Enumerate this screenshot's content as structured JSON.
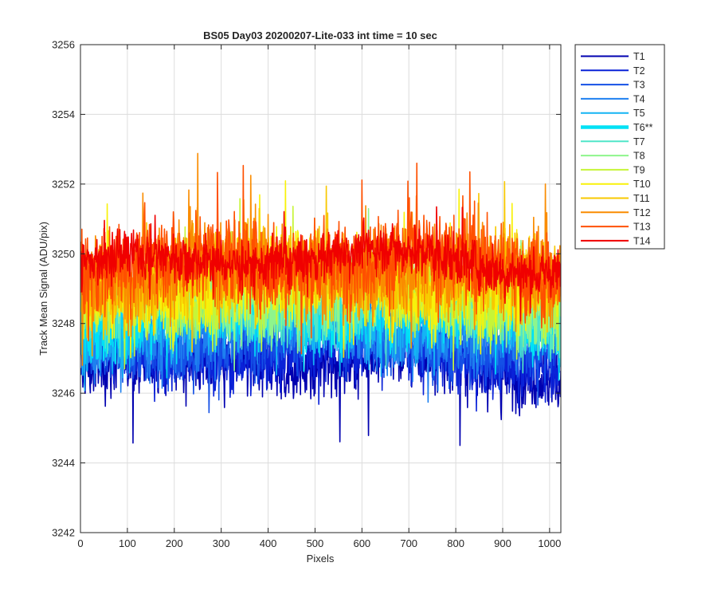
{
  "chart_data": {
    "type": "line",
    "title": "BS05 Day03 20200207-Lite-033 int time = 10 sec",
    "xlabel": "Pixels",
    "ylabel": "Track Mean Signal (ADU/pix)",
    "xlim": [
      0,
      1024
    ],
    "ylim": [
      3242,
      3256
    ],
    "x_ticks": [
      0,
      100,
      200,
      300,
      400,
      500,
      600,
      700,
      800,
      900,
      1000
    ],
    "y_ticks": [
      3242,
      3244,
      3246,
      3248,
      3250,
      3252,
      3254,
      3256
    ],
    "grid": true,
    "legend_position": "outside-right",
    "x_range": [
      1,
      1024
    ],
    "series": [
      {
        "name": "T1",
        "color": "#0000b0",
        "mean": 3246.6,
        "noise_sd": 0.65,
        "min": 3243.6,
        "max": 3249.2
      },
      {
        "name": "T2",
        "color": "#0a22d8",
        "mean": 3246.9,
        "noise_sd": 0.65,
        "min": 3244.2,
        "max": 3249.5
      },
      {
        "name": "T3",
        "color": "#1450e6",
        "mean": 3247.2,
        "noise_sd": 0.65,
        "min": 3244.8,
        "max": 3249.8
      },
      {
        "name": "T4",
        "color": "#1e80f0",
        "mean": 3247.5,
        "noise_sd": 0.65,
        "min": 3245.0,
        "max": 3250.2
      },
      {
        "name": "T5",
        "color": "#14b4f4",
        "mean": 3247.8,
        "noise_sd": 0.7,
        "min": 3245.3,
        "max": 3251.6
      },
      {
        "name": "T6**",
        "color": "#00e1f5",
        "mean": 3248.0,
        "noise_sd": 0.7,
        "min": 3245.5,
        "max": 3252.4,
        "highlight": true
      },
      {
        "name": "T7",
        "color": "#50e6c8",
        "mean": 3248.2,
        "noise_sd": 0.7,
        "min": 3245.8,
        "max": 3252.0
      },
      {
        "name": "T8",
        "color": "#8ef58c",
        "mean": 3248.5,
        "noise_sd": 0.75,
        "min": 3246.0,
        "max": 3254.0
      },
      {
        "name": "T9",
        "color": "#c6f537",
        "mean": 3248.7,
        "noise_sd": 0.8,
        "min": 3246.2,
        "max": 3252.8
      },
      {
        "name": "T10",
        "color": "#f8f20a",
        "mean": 3248.9,
        "noise_sd": 0.85,
        "min": 3246.4,
        "max": 3253.2
      },
      {
        "name": "T11",
        "color": "#f8c800",
        "mean": 3249.1,
        "noise_sd": 0.85,
        "min": 3246.6,
        "max": 3252.5
      },
      {
        "name": "T12",
        "color": "#fa8c00",
        "mean": 3249.3,
        "noise_sd": 0.9,
        "min": 3246.8,
        "max": 3253.1
      },
      {
        "name": "T13",
        "color": "#ff5000",
        "mean": 3249.5,
        "noise_sd": 0.9,
        "min": 3247.0,
        "max": 3252.6
      },
      {
        "name": "T14",
        "color": "#f00000",
        "mean": 3249.6,
        "noise_sd": 0.5,
        "min": 3247.6,
        "max": 3251.6
      }
    ]
  }
}
